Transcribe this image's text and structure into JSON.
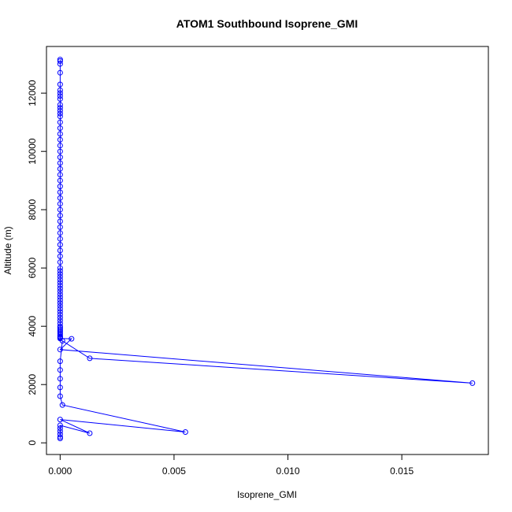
{
  "chart_data": {
    "type": "line",
    "title": "ATOM1 Southbound Isoprene_GMI",
    "xlabel": "Isoprene_GMI",
    "ylabel": "Altitude (m)",
    "xlim": [
      -0.0006,
      0.0188
    ],
    "ylim": [
      -400,
      13600
    ],
    "x_ticks": [
      0.0,
      0.005,
      0.01,
      0.015
    ],
    "x_tick_labels": [
      "0.000",
      "0.005",
      "0.010",
      "0.015"
    ],
    "y_ticks": [
      0,
      2000,
      4000,
      6000,
      8000,
      10000,
      12000
    ],
    "y_tick_labels": [
      "0",
      "2000",
      "4000",
      "6000",
      "8000",
      "10000",
      "12000"
    ],
    "grid": false,
    "legend": "none",
    "marker": "open-circle",
    "series": [
      {
        "color": "#0000ff",
        "x": [
          0,
          0,
          0,
          0,
          0,
          0,
          0,
          0,
          0,
          0,
          0,
          0,
          0,
          0,
          0,
          0,
          0,
          0,
          0,
          0,
          0,
          0,
          0,
          0,
          0,
          0,
          0,
          0,
          0,
          0,
          0,
          0,
          0,
          0,
          0,
          0,
          0,
          0,
          0,
          0,
          0,
          0,
          0,
          0,
          0,
          0,
          0,
          0,
          0,
          0,
          0,
          0,
          0,
          0,
          0,
          0,
          0,
          0,
          0,
          0,
          0,
          0,
          0,
          0,
          0,
          0,
          0,
          0,
          0,
          0,
          0.0005,
          0,
          0.0181,
          0.0013,
          0.0001,
          0,
          0,
          0,
          0,
          0,
          0.0001,
          0.0055,
          0,
          0.0013,
          0,
          0,
          0,
          0,
          0,
          0
        ],
        "y": [
          13150,
          13100,
          13000,
          12700,
          12300,
          12100,
          12000,
          11900,
          11800,
          11600,
          11500,
          11400,
          11300,
          11200,
          11000,
          10800,
          10600,
          10400,
          10200,
          10000,
          9800,
          9600,
          9400,
          9200,
          9000,
          8800,
          8600,
          8400,
          8200,
          8000,
          7800,
          7600,
          7400,
          7200,
          7000,
          6800,
          6600,
          6400,
          6200,
          6000,
          5900,
          5800,
          5700,
          5600,
          5500,
          5400,
          5300,
          5200,
          5100,
          5000,
          4900,
          4800,
          4700,
          4600,
          4500,
          4400,
          4300,
          4200,
          4100,
          4000,
          3950,
          3900,
          3850,
          3800,
          3750,
          3700,
          3650,
          3620,
          3600,
          3580,
          3570,
          3200,
          2050,
          2900,
          3500,
          2800,
          2500,
          2200,
          1900,
          1600,
          1300,
          370,
          800,
          330,
          600,
          500,
          400,
          300,
          200,
          150
        ]
      }
    ]
  }
}
